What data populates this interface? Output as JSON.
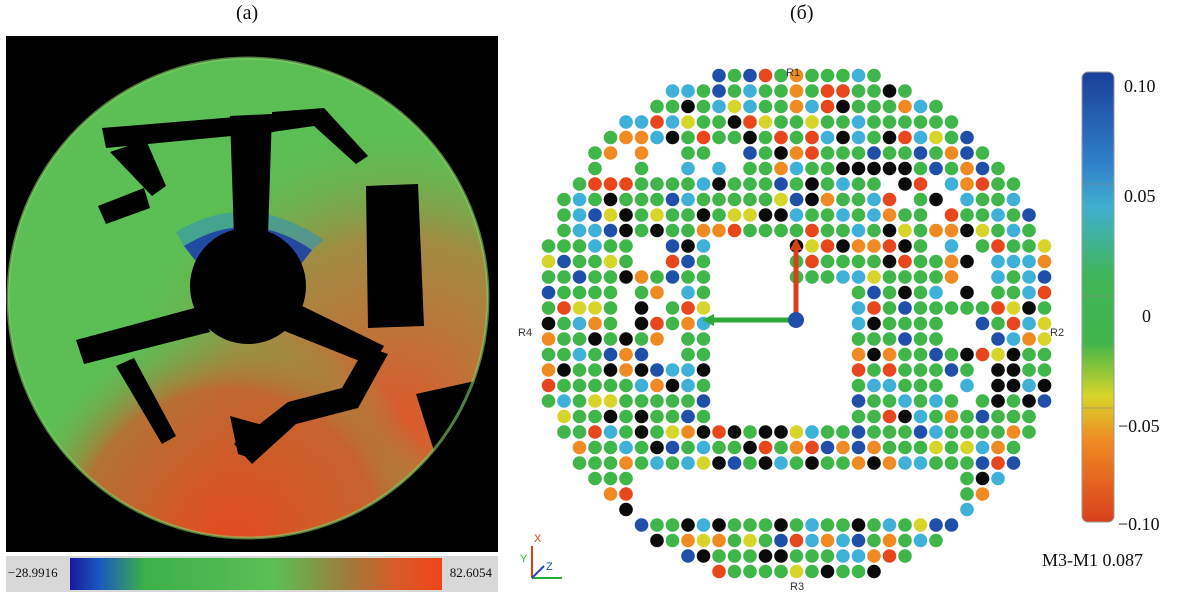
{
  "panels": {
    "a": {
      "label": "(а)",
      "colorbar": {
        "min_label": "−28.9916",
        "max_label": "82.6054"
      },
      "colors": {
        "low": "#1a3fa8",
        "mid": "#3cb04a",
        "high": "#e8461c",
        "mask": "#000000",
        "field": "#5bbf55"
      }
    },
    "b": {
      "label": "(б)",
      "markers": {
        "top": "R1",
        "right": "R2",
        "bottom": "R3",
        "left": "R4"
      },
      "axes_gizmo": {
        "x": "X",
        "y": "Y",
        "z": "Z"
      },
      "colorbar": {
        "ticks": [
          "0.10",
          "0.05",
          "0",
          "−0.05",
          "−0.10"
        ]
      },
      "caption": "М3-М1 0.087",
      "colors": {
        "blue": "#1f4fa8",
        "cyan": "#3fb0d8",
        "green": "#3fb54a",
        "yellow": "#d8d52a",
        "orange": "#f08a22",
        "red": "#e8461c",
        "black": "#0a0a0a"
      }
    }
  }
}
